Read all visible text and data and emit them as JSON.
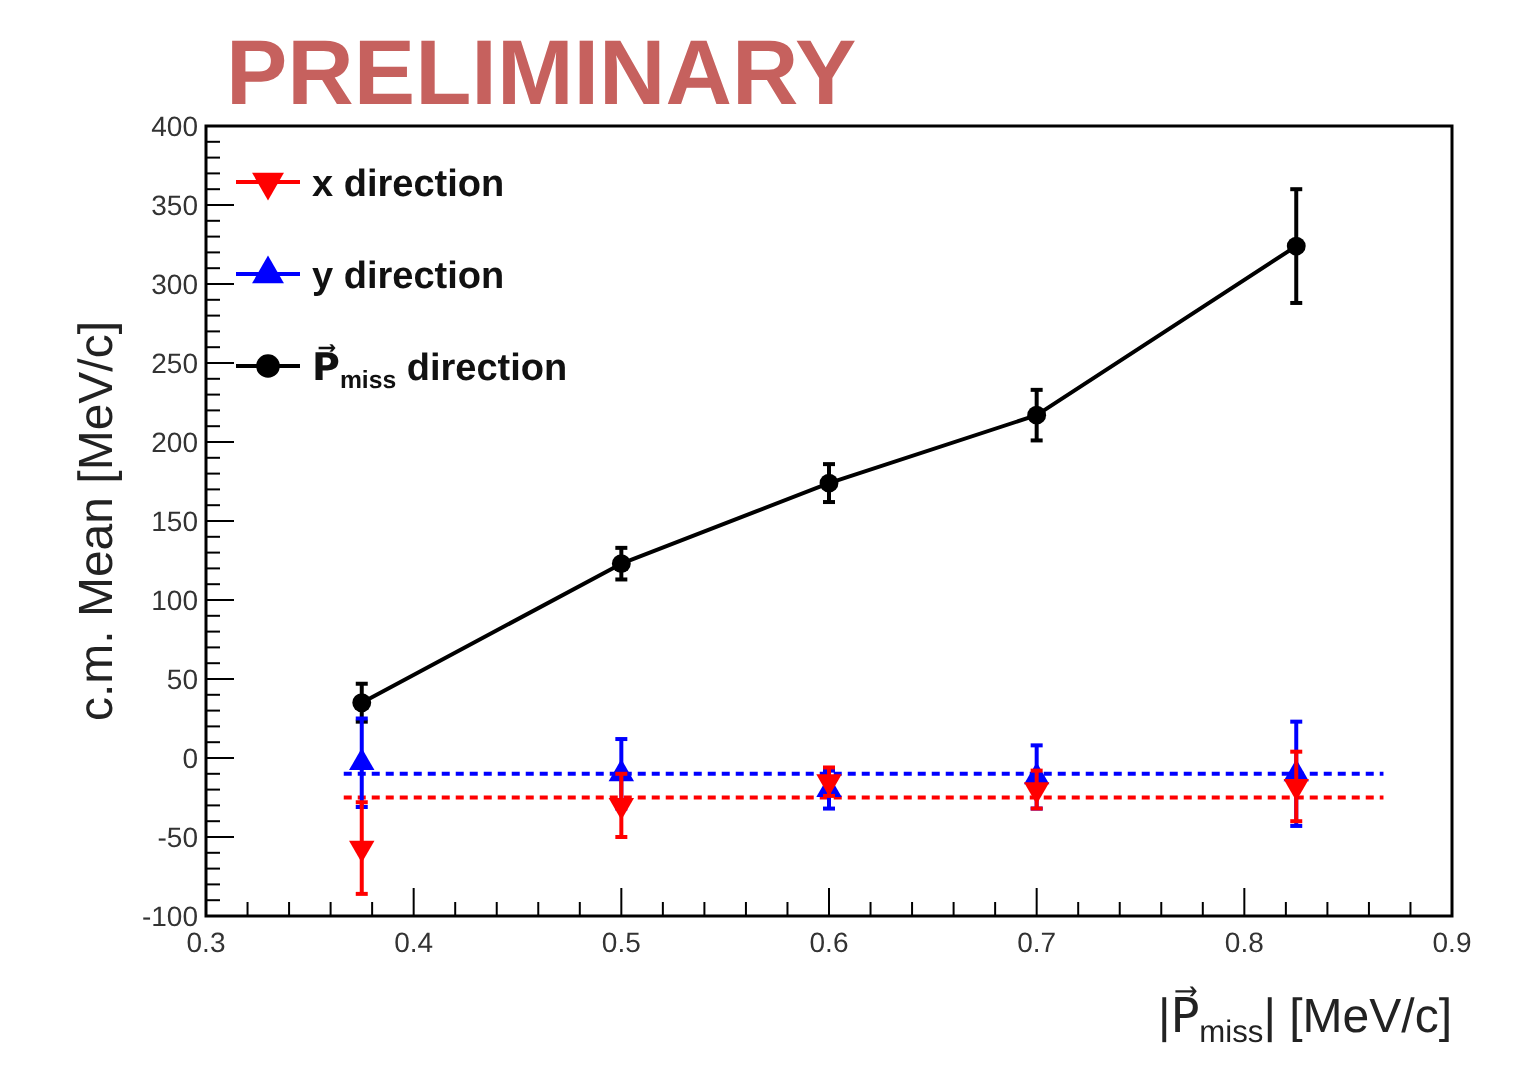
{
  "chart_data": {
    "type": "line",
    "xlabel": "|P⃗$_{miss}$| [MeV/c]",
    "ylabel": "c.m. Mean [MeV/c]",
    "annotations": [
      "PRELIMINARY"
    ],
    "x": [
      0.375,
      0.5,
      0.6,
      0.7,
      0.825
    ],
    "series": [
      {
        "name": "x direction",
        "type": "scatter",
        "color": "#ff0000",
        "marker": "triangle-down",
        "values": [
          -57,
          -30,
          -15,
          -20,
          -18
        ],
        "errors": [
          29,
          20,
          9,
          12,
          22
        ]
      },
      {
        "name": "y direction",
        "type": "scatter",
        "color": "#0000ff",
        "marker": "triangle",
        "values": [
          -3,
          -10,
          -20,
          -12,
          -10
        ],
        "errors": [
          28,
          22,
          12,
          20,
          33
        ]
      },
      {
        "name": "P⃗$_{miss}$ direction",
        "type": "line",
        "color": "#000000",
        "marker": "circle",
        "values": [
          35,
          123,
          174,
          217,
          324
        ],
        "errors": [
          12,
          10,
          12,
          16,
          36
        ]
      }
    ],
    "ref_lines": [
      {
        "axis": "y",
        "value": -10,
        "color": "#0000ff",
        "line_style": "dotted"
      },
      {
        "axis": "y",
        "value": -25,
        "color": "#ff0000",
        "line_style": "dotted"
      }
    ],
    "xlim": [
      0.3,
      0.9
    ],
    "xticks": [
      0.3,
      0.4,
      0.5,
      0.6,
      0.7,
      0.8,
      0.9
    ],
    "ylim": [
      -100,
      400
    ],
    "yticks": [
      -100,
      -50,
      0,
      50,
      100,
      150,
      200,
      250,
      300,
      350,
      400
    ],
    "grid": false,
    "legend": "top left"
  }
}
